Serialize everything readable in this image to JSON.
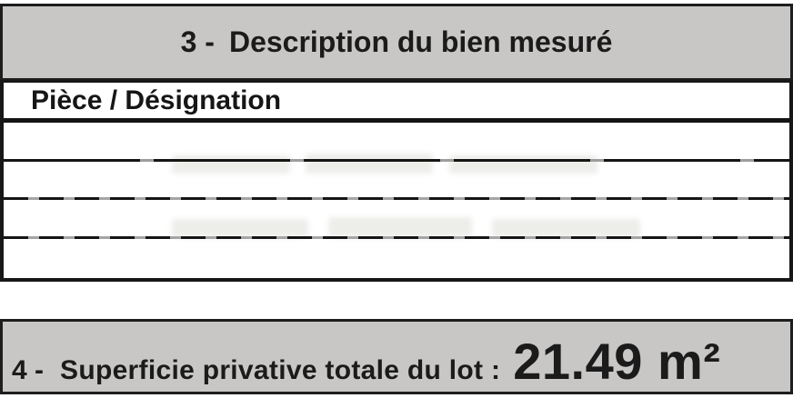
{
  "section3": {
    "number": "3 -",
    "title": "Description du bien mesuré"
  },
  "table": {
    "header": "Pièce / Désignation",
    "rows": [
      "",
      "",
      "",
      ""
    ]
  },
  "section4": {
    "number": "4 -",
    "label": "Superficie privative totale du lot :",
    "value": "21.49 m²"
  },
  "colors": {
    "bar_background": "#c8c7c5",
    "border": "#1e1e1e",
    "text": "#1b1b1b",
    "separator_gray": "#a5a5a5"
  }
}
